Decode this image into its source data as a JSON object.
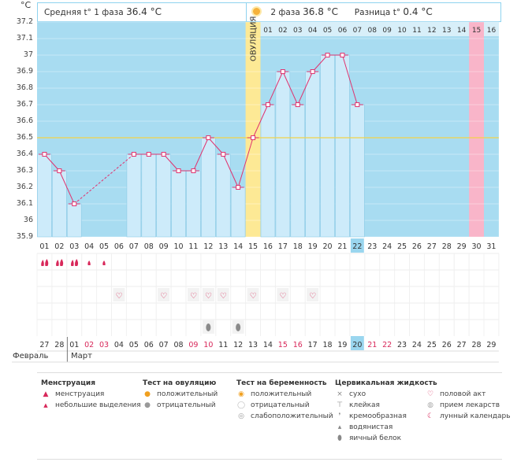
{
  "unit": "°C",
  "header": {
    "phase1_label": "Средняя t° 1 фаза",
    "phase1_value": "36.4 °C",
    "phase2_label": "2 фаза",
    "phase2_value": "36.8 °C",
    "diff_label": "Разница t°",
    "diff_value": "0.4 °C"
  },
  "ovulation_label": "ОВУЛЯЦИЯ",
  "chart_data": {
    "type": "bar",
    "ylim": [
      35.9,
      37.2
    ],
    "yticks": [
      "35.9",
      "36",
      "36.1",
      "36.2",
      "36.3",
      "36.4",
      "36.5",
      "36.6",
      "36.7",
      "36.8",
      "36.9",
      "37",
      "37.1",
      "37.2"
    ],
    "cycle_days": [
      "01",
      "02",
      "03",
      "04",
      "05",
      "06",
      "07",
      "08",
      "09",
      "10",
      "11",
      "12",
      "13",
      "14",
      "15",
      "16",
      "17",
      "18",
      "19",
      "20",
      "21",
      "22",
      "23",
      "24",
      "25",
      "26",
      "27",
      "28",
      "29",
      "30",
      "31"
    ],
    "values": [
      36.4,
      36.3,
      36.1,
      null,
      null,
      null,
      36.4,
      36.4,
      36.4,
      36.3,
      36.3,
      36.5,
      36.4,
      36.2,
      36.5,
      36.7,
      36.9,
      36.7,
      36.9,
      37.0,
      37.0,
      36.7,
      null,
      null,
      null,
      null,
      null,
      null,
      null,
      null,
      null
    ],
    "coverline": 36.5,
    "ovulation_day": 15,
    "phase2_labels": [
      "01",
      "02",
      "03",
      "04",
      "05",
      "06",
      "07",
      "08",
      "09",
      "10",
      "11",
      "12",
      "13",
      "14",
      "15",
      "16"
    ],
    "phase2_start_day": 16,
    "expected_period_day": 30,
    "today_day": 22
  },
  "calendar": {
    "dates": [
      "27",
      "28",
      "01",
      "02",
      "03",
      "04",
      "05",
      "06",
      "07",
      "08",
      "09",
      "10",
      "11",
      "12",
      "13",
      "14",
      "15",
      "16",
      "17",
      "18",
      "19",
      "20",
      "21",
      "22",
      "23",
      "24",
      "25",
      "26",
      "27",
      "28",
      "29"
    ],
    "red_indices": [
      3,
      4,
      10,
      11,
      16,
      17,
      22,
      23
    ],
    "today_index": 21,
    "month1": "Февраль",
    "month2": "Март"
  },
  "rows": {
    "menstruation": {
      "heavy": [
        1,
        2,
        3
      ],
      "light": [
        4,
        5
      ]
    },
    "intercourse": [
      6,
      9,
      11,
      12,
      13,
      15,
      17,
      19
    ],
    "egg_white": [
      12,
      14
    ]
  },
  "legend": {
    "menstruation": {
      "title": "Менструация",
      "items": [
        "менструация",
        "небольшие выделения"
      ]
    },
    "ovulation_test": {
      "title": "Тест на овуляцию",
      "items": [
        "положительный",
        "отрицательный"
      ]
    },
    "pregnancy_test": {
      "title": "Тест на беременность",
      "items": [
        "положительный",
        "отрицательный",
        "слабоположительный"
      ]
    },
    "cervical": {
      "title": "Цервикальная жидкость",
      "items": [
        "сухо",
        "клейкая",
        "кремообразная",
        "водянистая",
        "яичный белок"
      ]
    },
    "other": {
      "items": [
        "половой акт",
        "прием лекарств",
        "лунный календарь"
      ]
    }
  },
  "colors": {
    "sky": "#a8dcf1",
    "bar": "#cdebfa",
    "line": "#e0336f",
    "ovulation": "#fde995",
    "period": "#f9b5c9",
    "today": "#9ad6ef",
    "red": "#d8285a"
  }
}
